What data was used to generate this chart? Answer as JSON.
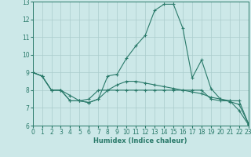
{
  "xlabel": "Humidex (Indice chaleur)",
  "xlim": [
    0,
    23
  ],
  "ylim": [
    6,
    13
  ],
  "yticks": [
    6,
    7,
    8,
    9,
    10,
    11,
    12,
    13
  ],
  "xticks": [
    0,
    1,
    2,
    3,
    4,
    5,
    6,
    7,
    8,
    9,
    10,
    11,
    12,
    13,
    14,
    15,
    16,
    17,
    18,
    19,
    20,
    21,
    22,
    23
  ],
  "line_color": "#2a7a6a",
  "bg_color": "#cce8e8",
  "grid_color": "#aacccc",
  "line1_x": [
    0,
    1,
    2,
    3,
    4,
    5,
    6,
    7,
    8,
    9,
    10,
    11,
    12,
    13,
    14,
    15,
    16,
    17,
    18,
    19,
    20,
    21,
    22,
    23
  ],
  "line1_y": [
    9.0,
    8.8,
    8.0,
    8.0,
    7.4,
    7.4,
    7.3,
    7.5,
    8.8,
    8.9,
    9.8,
    10.5,
    11.1,
    12.5,
    12.85,
    12.85,
    11.5,
    8.7,
    9.7,
    8.1,
    7.5,
    7.4,
    6.85,
    6.05
  ],
  "line2_x": [
    0,
    1,
    2,
    3,
    4,
    5,
    6,
    7,
    8,
    9,
    10,
    11,
    12,
    13,
    14,
    15,
    16,
    17,
    18,
    19,
    20,
    21,
    22,
    23
  ],
  "line2_y": [
    9.0,
    8.8,
    8.0,
    8.0,
    7.4,
    7.4,
    7.5,
    8.0,
    8.0,
    8.0,
    8.0,
    8.0,
    8.0,
    8.0,
    8.0,
    8.0,
    8.0,
    8.0,
    8.0,
    7.5,
    7.4,
    7.4,
    7.4,
    6.1
  ],
  "line3_x": [
    0,
    1,
    2,
    3,
    4,
    5,
    6,
    7,
    8,
    9,
    10,
    11,
    12,
    13,
    14,
    15,
    16,
    17,
    18,
    19,
    20,
    21,
    22,
    23
  ],
  "line3_y": [
    9.0,
    8.8,
    8.0,
    8.0,
    7.7,
    7.4,
    7.3,
    7.5,
    8.0,
    8.3,
    8.5,
    8.5,
    8.4,
    8.3,
    8.2,
    8.1,
    8.0,
    7.9,
    7.8,
    7.6,
    7.5,
    7.35,
    7.2,
    6.1
  ]
}
